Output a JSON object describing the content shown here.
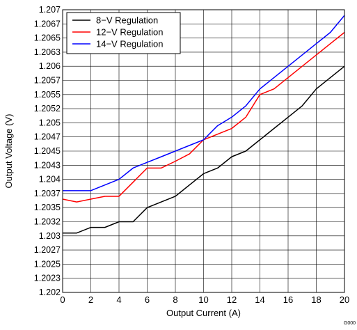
{
  "chart_data": {
    "type": "line",
    "title": "",
    "xlabel": "Output Current (A)",
    "ylabel": "Output Voltage (V)",
    "xlim": [
      0,
      20
    ],
    "ylim": [
      1.202,
      1.207
    ],
    "x_ticks": [
      0,
      2,
      4,
      6,
      8,
      10,
      12,
      14,
      16,
      18,
      20
    ],
    "x_tick_labels": [
      "0",
      "2",
      "4",
      "6",
      "8",
      "10",
      "12",
      "14",
      "16",
      "18",
      "20"
    ],
    "y_ticks": [
      1.202,
      1.20225,
      1.2025,
      1.20275,
      1.203,
      1.20325,
      1.2035,
      1.20375,
      1.204,
      1.20425,
      1.2045,
      1.20475,
      1.205,
      1.20525,
      1.2055,
      1.20575,
      1.206,
      1.20625,
      1.2065,
      1.20675,
      1.207
    ],
    "y_tick_labels": [
      "1.202",
      "1.2023",
      "1.2025",
      "1.2027",
      "1.203",
      "1.2032",
      "1.2035",
      "1.2037",
      "1.204",
      "1.2043",
      "1.2045",
      "1.2047",
      "1.205",
      "1.2052",
      "1.2055",
      "1.2057",
      "1.206",
      "1.2063",
      "1.2065",
      "1.2067",
      "1.207"
    ],
    "grid": true,
    "legend_position": "top-left",
    "x": [
      0,
      1,
      2,
      3,
      4,
      5,
      6,
      7,
      8,
      9,
      10,
      11,
      12,
      13,
      14,
      15,
      16,
      17,
      18,
      19,
      20
    ],
    "series": [
      {
        "name": "8−V Regulation",
        "color": "#000000",
        "values": [
          1.20305,
          1.20305,
          1.20315,
          1.20315,
          1.20325,
          1.20325,
          1.2035,
          1.2036,
          1.2037,
          1.2039,
          1.2041,
          1.2042,
          1.2044,
          1.2045,
          1.2047,
          1.2049,
          1.2051,
          1.2053,
          1.2056,
          1.2058,
          1.206
        ]
      },
      {
        "name": "12−V Regulation",
        "color": "#ff0000",
        "values": [
          1.20365,
          1.2036,
          1.20365,
          1.2037,
          1.2037,
          1.20395,
          1.2042,
          1.2042,
          1.20432,
          1.20445,
          1.2047,
          1.2048,
          1.2049,
          1.2051,
          1.2055,
          1.2056,
          1.2058,
          1.206,
          1.2062,
          1.2064,
          1.2066
        ]
      },
      {
        "name": "14−V Regulation",
        "color": "#0000ff",
        "values": [
          1.2038,
          1.2038,
          1.2038,
          1.2039,
          1.204,
          1.2042,
          1.2043,
          1.2044,
          1.2045,
          1.2046,
          1.2047,
          1.20495,
          1.2051,
          1.2053,
          1.2056,
          1.2058,
          1.206,
          1.2062,
          1.2064,
          1.2066,
          1.2069
        ]
      }
    ],
    "figure_code": "G000"
  }
}
